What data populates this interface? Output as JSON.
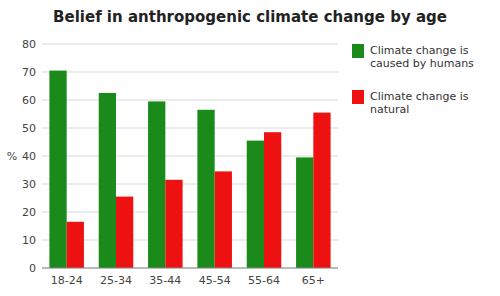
{
  "chart_data": {
    "type": "bar",
    "title": "Belief in anthropogenic climate change by age",
    "categories": [
      "18-24",
      "25-34",
      "35-44",
      "45-54",
      "55-64",
      "65+"
    ],
    "series": [
      {
        "name": "Climate change is\ncaused by humans",
        "color": "#1a8a1a",
        "values": [
          70.5,
          62.5,
          59.5,
          56.5,
          45.5,
          39.5
        ]
      },
      {
        "name": "Climate change is\nnatural",
        "color": "#ee1111",
        "values": [
          16.5,
          25.5,
          31.5,
          34.5,
          48.5,
          55.5
        ]
      }
    ],
    "y_label": "%",
    "ylim": [
      0,
      80
    ],
    "yticks": [
      0,
      10,
      20,
      30,
      40,
      50,
      60,
      70,
      80
    ],
    "grid": true,
    "legend": "right"
  }
}
